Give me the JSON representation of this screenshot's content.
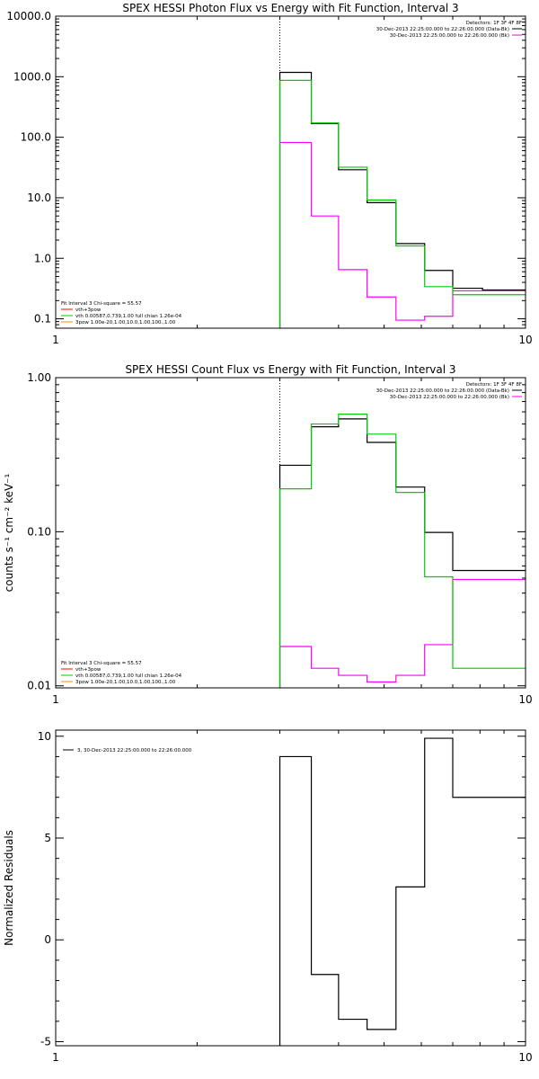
{
  "chart_data": [
    {
      "type": "line",
      "title": "SPEX HESSI Photon Flux vs Energy with Fit Function, Interval 3",
      "xlabel": "",
      "ylabel": "",
      "xscale": "log",
      "yscale": "log",
      "xlim": [
        1,
        10
      ],
      "ylim": [
        0.07,
        10000
      ],
      "x_ticks": [
        {
          "v": 1,
          "label": "1"
        },
        {
          "v": 10,
          "label": "10"
        }
      ],
      "y_ticks": [
        {
          "v": 10000,
          "label": "10000.0"
        },
        {
          "v": 1000,
          "label": "1000.0"
        },
        {
          "v": 100,
          "label": "100.0"
        },
        {
          "v": 10,
          "label": "10.0"
        },
        {
          "v": 1,
          "label": "1.0"
        },
        {
          "v": 0.1,
          "label": "0.1"
        }
      ],
      "marker_line_x": 3.0,
      "legend_top_right": [
        {
          "text": "Detectors: 1F 3F 4F 8F",
          "color": ""
        },
        {
          "text": "30-Dec-2013 22:25:00.000 to 22:26:00.000 (Data-Bk)",
          "color": "#000000"
        },
        {
          "text": "30-Dec-2013 22:25:00.000 to 22:26:00.000 (Bk)",
          "color": "#ff00ff"
        }
      ],
      "legend_bottom_left": [
        {
          "text": "Fit Interval 3   Chi-square = 55.57",
          "color": ""
        },
        {
          "text": "vth+3pow",
          "color": "#ff0000"
        },
        {
          "text": "vth 0.00587,0.739,1.00  full chian 1.26e-04",
          "color": "#00cc00"
        },
        {
          "text": "3pow 1.00e-20,1.00,10.0,1.00,100.,1.00",
          "color": "#ff8c00"
        }
      ],
      "bin_edges": [
        3.0,
        3.5,
        4.0,
        4.6,
        5.3,
        6.1,
        7.0,
        8.1,
        9.2,
        10.5
      ],
      "series": [
        {
          "name": "",
          "color": "#000000",
          "values": [
            1180,
            168,
            29,
            8.3,
            1.75,
            0.63,
            0.32,
            0.3,
            0.3
          ]
        },
        {
          "name": "",
          "color": "#ff00ff",
          "values": [
            82,
            5.0,
            0.65,
            0.23,
            0.095,
            0.11,
            0.29,
            0.29,
            0.29
          ]
        },
        {
          "name": "",
          "color": "#00cc00",
          "values": [
            870,
            172,
            32,
            9.2,
            1.6,
            0.34,
            0.25,
            0.25,
            0.25
          ]
        }
      ]
    },
    {
      "type": "line",
      "title": "SPEX HESSI Count Flux vs Energy with Fit Function, Interval 3",
      "xlabel": "",
      "ylabel": "counts s⁻¹ cm⁻² keV⁻¹",
      "xscale": "log",
      "yscale": "log",
      "xlim": [
        1,
        10
      ],
      "ylim": [
        0.0097,
        1.0
      ],
      "x_ticks": [
        {
          "v": 1,
          "label": "1"
        },
        {
          "v": 10,
          "label": "10"
        }
      ],
      "y_ticks": [
        {
          "v": 1.0,
          "label": "1.00"
        },
        {
          "v": 0.1,
          "label": "0.10"
        },
        {
          "v": 0.01,
          "label": "0.01"
        }
      ],
      "marker_line_x": 3.0,
      "legend_top_right": [
        {
          "text": "Detectors: 1F 3F 4F 8F",
          "color": ""
        },
        {
          "text": "30-Dec-2013 22:25:00.000 to 22:26:00.000 (Data-Bk)",
          "color": "#000000"
        },
        {
          "text": "30-Dec-2013 22:25:00.000 to 22:26:00.000 (Bk)",
          "color": "#ff00ff"
        }
      ],
      "legend_bottom_left": [
        {
          "text": "Fit Interval 3   Chi-square = 55.57",
          "color": ""
        },
        {
          "text": "vth+3pow",
          "color": "#ff0000"
        },
        {
          "text": "vth 0.00587,0.739,1.00  full chian 1.26e-04",
          "color": "#00cc00"
        },
        {
          "text": "3pow 1.00e-20,1.00,10.0,1.00,100.,1.00",
          "color": "#ff8c00"
        }
      ],
      "bin_edges": [
        3.0,
        3.5,
        4.0,
        4.6,
        5.3,
        6.1,
        7.0,
        8.1,
        9.2,
        10.5
      ],
      "series": [
        {
          "name": "",
          "color": "#000000",
          "values": [
            0.27,
            0.48,
            0.54,
            0.38,
            0.195,
            0.099,
            0.056,
            0.056,
            0.056
          ]
        },
        {
          "name": "",
          "color": "#ff00ff",
          "values": [
            0.018,
            0.013,
            0.0117,
            0.0106,
            0.0117,
            0.0185,
            0.049,
            0.049,
            0.049
          ]
        },
        {
          "name": "",
          "color": "#00cc00",
          "values": [
            0.19,
            0.5,
            0.58,
            0.43,
            0.18,
            0.051,
            0.013,
            0.013,
            0.013
          ]
        }
      ]
    },
    {
      "type": "line",
      "title": "",
      "xlabel": "",
      "ylabel": "Normalized Residuals",
      "xscale": "log",
      "yscale": "linear",
      "xlim": [
        1,
        10
      ],
      "ylim": [
        -5.2,
        10.3
      ],
      "x_ticks": [
        {
          "v": 1,
          "label": "1"
        },
        {
          "v": 10,
          "label": "10"
        }
      ],
      "y_ticks": [
        {
          "v": 10,
          "label": "10"
        },
        {
          "v": 5,
          "label": "5"
        },
        {
          "v": 0,
          "label": "0"
        },
        {
          "v": -5,
          "label": "-5"
        }
      ],
      "legend_top_left": [
        {
          "text": "3, 30-Dec-2013 22:25:00.000 to 22:26:00.000",
          "color": "#000000"
        }
      ],
      "bin_edges": [
        3.0,
        3.5,
        4.0,
        4.6,
        5.3,
        6.1,
        7.0,
        8.1,
        9.2,
        10.5
      ],
      "series": [
        {
          "name": "",
          "color": "#000000",
          "values": [
            9.0,
            -1.7,
            -3.9,
            -4.4,
            2.6,
            9.9,
            7.0,
            7.0,
            7.0
          ]
        }
      ]
    }
  ]
}
